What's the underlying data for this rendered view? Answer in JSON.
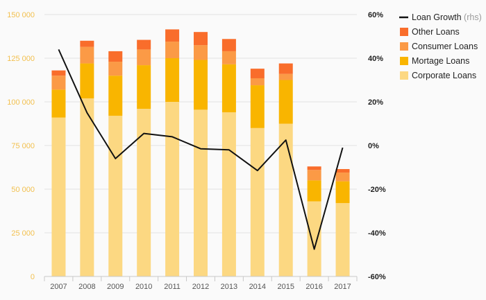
{
  "chart_data": {
    "type": "bar",
    "stacked": true,
    "categories": [
      "2007",
      "2008",
      "2009",
      "2010",
      "2011",
      "2012",
      "2013",
      "2014",
      "2015",
      "2016",
      "2017"
    ],
    "series": [
      {
        "name": "Corporate Loans",
        "color": "#fcd882",
        "values": [
          91000,
          102000,
          92000,
          96000,
          100000,
          95500,
          94000,
          85000,
          87500,
          43000,
          42000
        ]
      },
      {
        "name": "Mortage Loans",
        "color": "#f9b500",
        "values": [
          16000,
          20000,
          23000,
          25000,
          25000,
          28500,
          27500,
          24500,
          25000,
          12000,
          12500
        ]
      },
      {
        "name": "Consumer Loans",
        "color": "#fb9a46",
        "values": [
          8000,
          9500,
          8000,
          9000,
          9500,
          8500,
          7500,
          4000,
          3500,
          6000,
          5000
        ]
      },
      {
        "name": "Other Loans",
        "color": "#f96d2b",
        "values": [
          3000,
          3500,
          6000,
          5500,
          7000,
          7500,
          7000,
          5500,
          6000,
          2000,
          2000
        ]
      }
    ],
    "line": {
      "name": "Loan Growth",
      "name_suffix": "(rhs)",
      "color": "#111111",
      "values": [
        44,
        15,
        -6,
        5.5,
        4,
        -1.5,
        -2,
        -11.5,
        2.5,
        -47.5,
        -1
      ]
    },
    "y_left": {
      "min": 0,
      "max": 150000,
      "ticks": [
        0,
        25000,
        50000,
        75000,
        100000,
        125000,
        150000
      ],
      "tick_labels": [
        "0",
        "25 000",
        "50 000",
        "75 000",
        "100 000",
        "125 000",
        "150 000"
      ]
    },
    "y_right": {
      "min": -60,
      "max": 60,
      "ticks": [
        -60,
        -40,
        -20,
        0,
        20,
        40,
        60
      ],
      "tick_labels": [
        "-60%",
        "-40%",
        "-20%",
        "0%",
        "20%",
        "40%",
        "60%"
      ]
    },
    "legend_order": [
      "Loan Growth",
      "Other Loans",
      "Consumer Loans",
      "Mortage Loans",
      "Corporate Loans"
    ],
    "legend_position": "top-right",
    "grid": true
  }
}
